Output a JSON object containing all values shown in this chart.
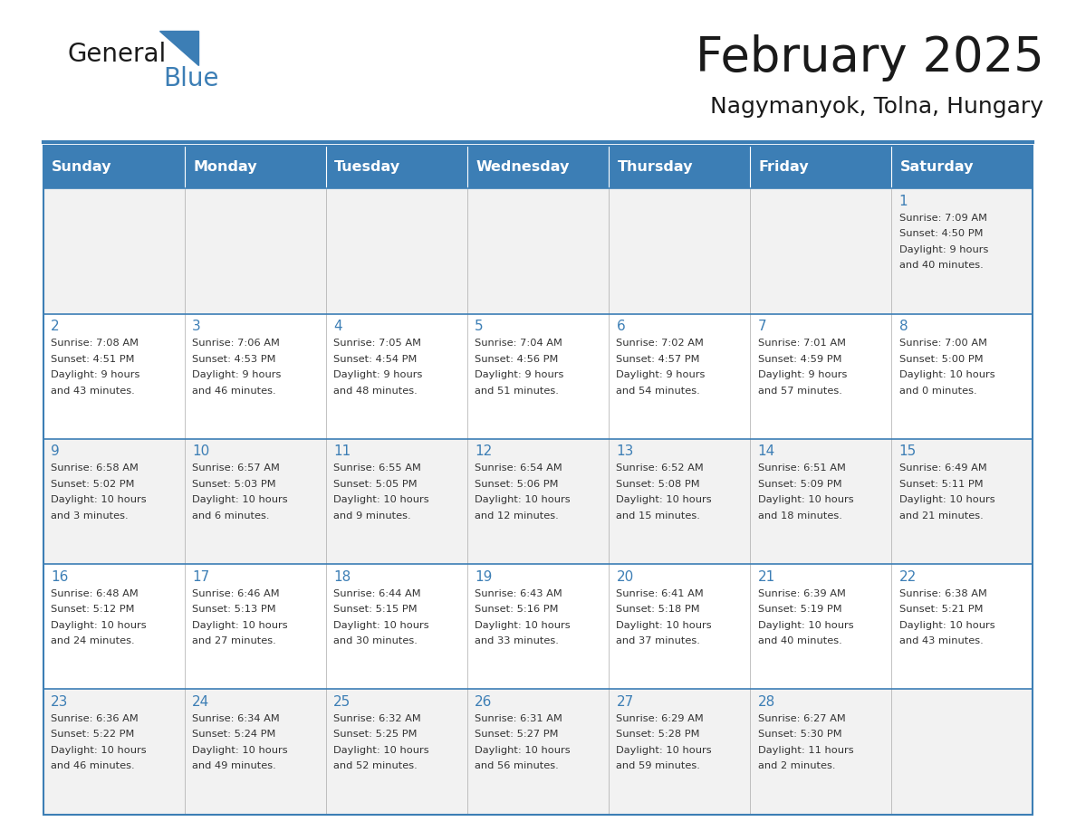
{
  "title": "February 2025",
  "subtitle": "Nagymanyok, Tolna, Hungary",
  "header_color": "#3C7EB5",
  "header_text_color": "#FFFFFF",
  "cell_bg_color": "#F2F2F2",
  "cell_bg_alt_color": "#FFFFFF",
  "day_number_color": "#3C7EB5",
  "text_color": "#333333",
  "line_color": "#3C7EB5",
  "days_of_week": [
    "Sunday",
    "Monday",
    "Tuesday",
    "Wednesday",
    "Thursday",
    "Friday",
    "Saturday"
  ],
  "calendar_data": [
    [
      null,
      null,
      null,
      null,
      null,
      null,
      {
        "day": 1,
        "sunrise": "7:09 AM",
        "sunset": "4:50 PM",
        "daylight": "9 hours and 40 minutes."
      }
    ],
    [
      {
        "day": 2,
        "sunrise": "7:08 AM",
        "sunset": "4:51 PM",
        "daylight": "9 hours and 43 minutes."
      },
      {
        "day": 3,
        "sunrise": "7:06 AM",
        "sunset": "4:53 PM",
        "daylight": "9 hours and 46 minutes."
      },
      {
        "day": 4,
        "sunrise": "7:05 AM",
        "sunset": "4:54 PM",
        "daylight": "9 hours and 48 minutes."
      },
      {
        "day": 5,
        "sunrise": "7:04 AM",
        "sunset": "4:56 PM",
        "daylight": "9 hours and 51 minutes."
      },
      {
        "day": 6,
        "sunrise": "7:02 AM",
        "sunset": "4:57 PM",
        "daylight": "9 hours and 54 minutes."
      },
      {
        "day": 7,
        "sunrise": "7:01 AM",
        "sunset": "4:59 PM",
        "daylight": "9 hours and 57 minutes."
      },
      {
        "day": 8,
        "sunrise": "7:00 AM",
        "sunset": "5:00 PM",
        "daylight": "10 hours and 0 minutes."
      }
    ],
    [
      {
        "day": 9,
        "sunrise": "6:58 AM",
        "sunset": "5:02 PM",
        "daylight": "10 hours and 3 minutes."
      },
      {
        "day": 10,
        "sunrise": "6:57 AM",
        "sunset": "5:03 PM",
        "daylight": "10 hours and 6 minutes."
      },
      {
        "day": 11,
        "sunrise": "6:55 AM",
        "sunset": "5:05 PM",
        "daylight": "10 hours and 9 minutes."
      },
      {
        "day": 12,
        "sunrise": "6:54 AM",
        "sunset": "5:06 PM",
        "daylight": "10 hours and 12 minutes."
      },
      {
        "day": 13,
        "sunrise": "6:52 AM",
        "sunset": "5:08 PM",
        "daylight": "10 hours and 15 minutes."
      },
      {
        "day": 14,
        "sunrise": "6:51 AM",
        "sunset": "5:09 PM",
        "daylight": "10 hours and 18 minutes."
      },
      {
        "day": 15,
        "sunrise": "6:49 AM",
        "sunset": "5:11 PM",
        "daylight": "10 hours and 21 minutes."
      }
    ],
    [
      {
        "day": 16,
        "sunrise": "6:48 AM",
        "sunset": "5:12 PM",
        "daylight": "10 hours and 24 minutes."
      },
      {
        "day": 17,
        "sunrise": "6:46 AM",
        "sunset": "5:13 PM",
        "daylight": "10 hours and 27 minutes."
      },
      {
        "day": 18,
        "sunrise": "6:44 AM",
        "sunset": "5:15 PM",
        "daylight": "10 hours and 30 minutes."
      },
      {
        "day": 19,
        "sunrise": "6:43 AM",
        "sunset": "5:16 PM",
        "daylight": "10 hours and 33 minutes."
      },
      {
        "day": 20,
        "sunrise": "6:41 AM",
        "sunset": "5:18 PM",
        "daylight": "10 hours and 37 minutes."
      },
      {
        "day": 21,
        "sunrise": "6:39 AM",
        "sunset": "5:19 PM",
        "daylight": "10 hours and 40 minutes."
      },
      {
        "day": 22,
        "sunrise": "6:38 AM",
        "sunset": "5:21 PM",
        "daylight": "10 hours and 43 minutes."
      }
    ],
    [
      {
        "day": 23,
        "sunrise": "6:36 AM",
        "sunset": "5:22 PM",
        "daylight": "10 hours and 46 minutes."
      },
      {
        "day": 24,
        "sunrise": "6:34 AM",
        "sunset": "5:24 PM",
        "daylight": "10 hours and 49 minutes."
      },
      {
        "day": 25,
        "sunrise": "6:32 AM",
        "sunset": "5:25 PM",
        "daylight": "10 hours and 52 minutes."
      },
      {
        "day": 26,
        "sunrise": "6:31 AM",
        "sunset": "5:27 PM",
        "daylight": "10 hours and 56 minutes."
      },
      {
        "day": 27,
        "sunrise": "6:29 AM",
        "sunset": "5:28 PM",
        "daylight": "10 hours and 59 minutes."
      },
      {
        "day": 28,
        "sunrise": "6:27 AM",
        "sunset": "5:30 PM",
        "daylight": "11 hours and 2 minutes."
      },
      null
    ]
  ]
}
